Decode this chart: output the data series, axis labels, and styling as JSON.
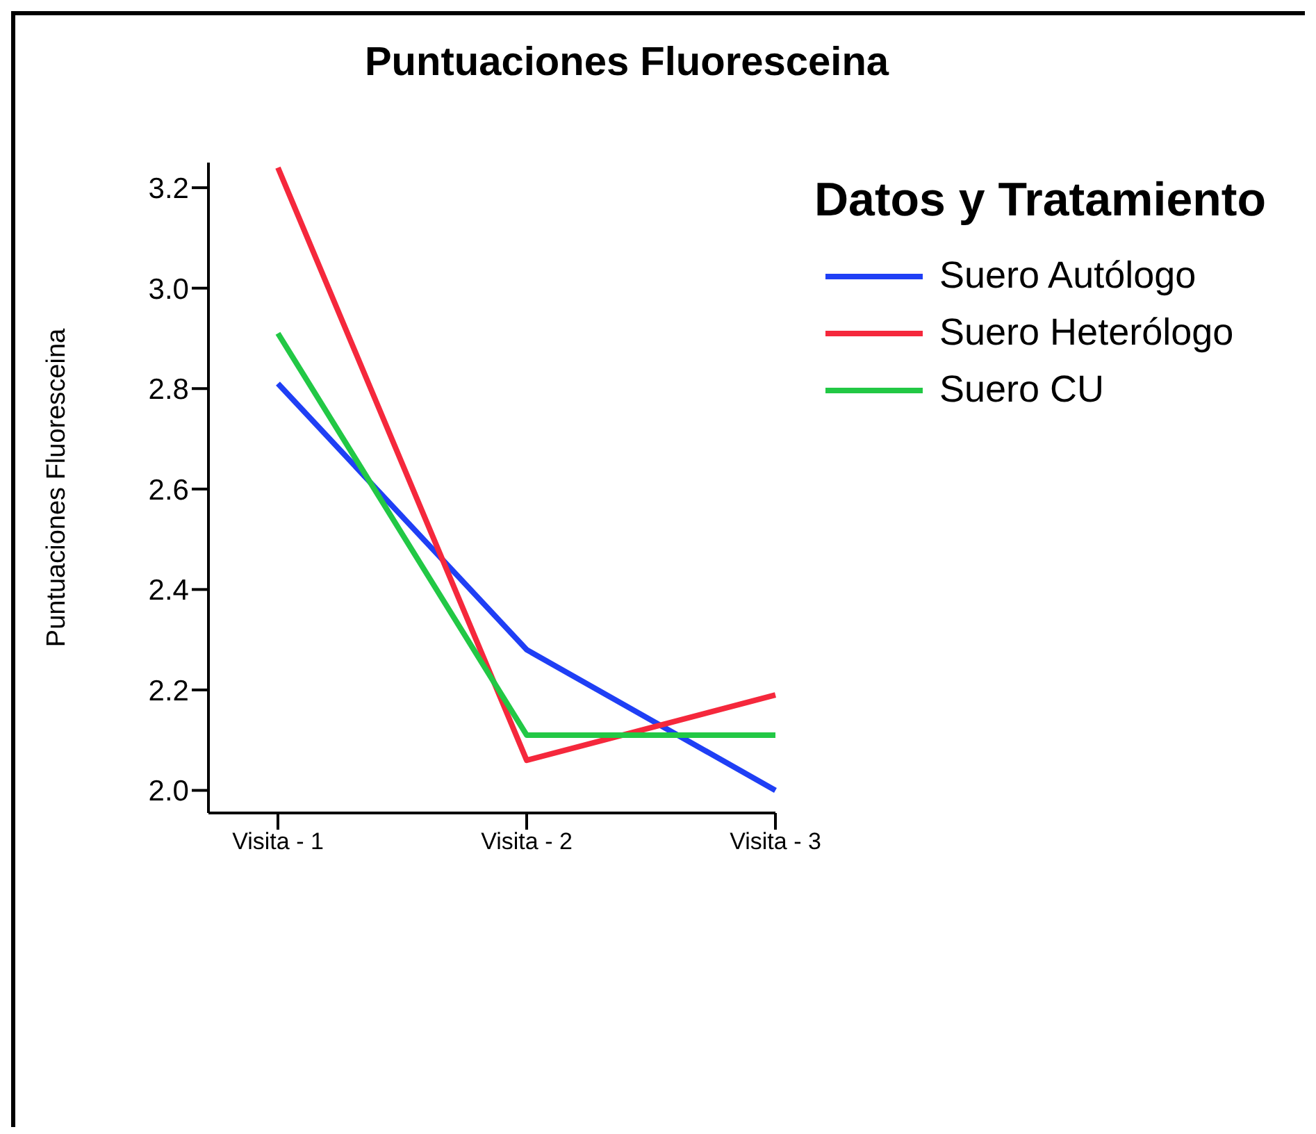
{
  "chart_data": {
    "type": "line",
    "title": "Puntuaciones Fluoresceina",
    "ylabel": "Puntuaciones Fluoresceina",
    "legend_title": "Datos y Tratamiento",
    "categories": [
      "Visita - 1",
      "Visita - 2",
      "Visita - 3"
    ],
    "series": [
      {
        "name": "Suero Autólogo",
        "color": "#1f3ff5",
        "values": [
          2.81,
          2.28,
          2.0
        ]
      },
      {
        "name": "Suero Heterólogo",
        "color": "#f5283c",
        "values": [
          3.24,
          2.06,
          2.19
        ]
      },
      {
        "name": "Suero CU",
        "color": "#22c845",
        "values": [
          2.91,
          2.11,
          2.11
        ]
      }
    ],
    "ylim": [
      1.955,
      3.25
    ],
    "yticks": [
      {
        "value": 2,
        "label": "2.0"
      },
      {
        "value": 2.2,
        "label": "2.2"
      },
      {
        "value": 2.4,
        "label": "2.4"
      },
      {
        "value": 2.6,
        "label": "2.6"
      },
      {
        "value": 2.8,
        "label": "2.8"
      },
      {
        "value": 3,
        "label": "3.0"
      },
      {
        "value": 3.2,
        "label": "3.2"
      }
    ],
    "grid": false,
    "legend": "top right",
    "marker": "none",
    "line_style": "solid"
  }
}
